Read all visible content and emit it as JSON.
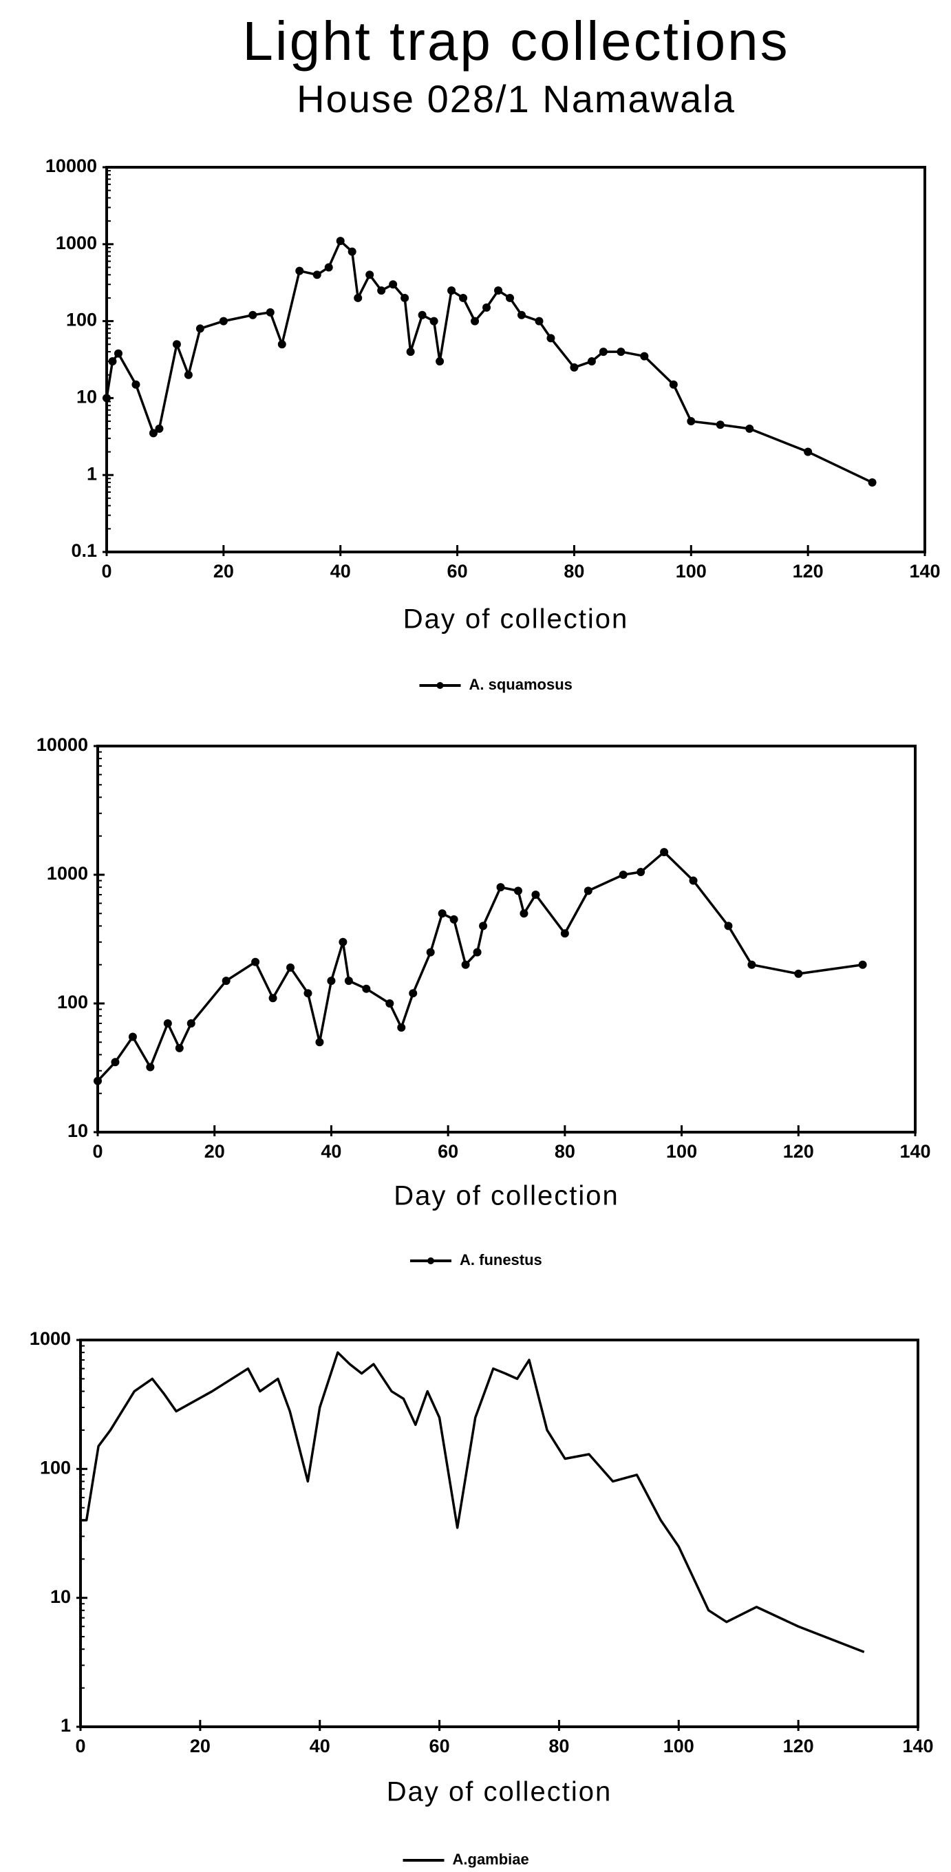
{
  "header": {
    "title": "Light trap collections",
    "subtitle": "House 028/1 Namawala"
  },
  "chart_data": [
    {
      "type": "line",
      "xlabel": "Day of collection",
      "log_scale": true,
      "marker": true,
      "xlim": [
        0,
        140
      ],
      "xticks": [
        0,
        20,
        40,
        60,
        80,
        100,
        120,
        140
      ],
      "ylim": [
        0.1,
        10000
      ],
      "yticks": [
        0.1,
        1,
        10,
        100,
        1000,
        10000
      ],
      "x": [
        0,
        1,
        2,
        5,
        8,
        9,
        12,
        14,
        16,
        20,
        25,
        28,
        30,
        33,
        36,
        38,
        40,
        42,
        43,
        45,
        47,
        49,
        51,
        52,
        54,
        56,
        57,
        59,
        61,
        63,
        65,
        67,
        69,
        71,
        74,
        76,
        80,
        83,
        85,
        88,
        92,
        97,
        100,
        105,
        110,
        120,
        131
      ],
      "series": [
        {
          "name": "A. squamosus",
          "color": "#000000",
          "values": [
            10,
            30,
            38,
            15,
            3.5,
            4,
            50,
            20,
            80,
            100,
            120,
            130,
            50,
            450,
            400,
            500,
            1100,
            800,
            200,
            400,
            250,
            300,
            200,
            40,
            120,
            100,
            30,
            250,
            200,
            100,
            150,
            250,
            200,
            120,
            100,
            60,
            25,
            30,
            40,
            40,
            35,
            15,
            5,
            4.5,
            4,
            2,
            0.8
          ]
        }
      ]
    },
    {
      "type": "line",
      "xlabel": "Day of collection",
      "log_scale": true,
      "marker": true,
      "xlim": [
        0,
        140
      ],
      "xticks": [
        0,
        20,
        40,
        60,
        80,
        100,
        120,
        140
      ],
      "ylim": [
        10,
        10000
      ],
      "yticks": [
        10,
        100,
        1000,
        10000
      ],
      "x": [
        0,
        3,
        6,
        9,
        12,
        14,
        16,
        22,
        27,
        30,
        33,
        36,
        38,
        40,
        42,
        43,
        46,
        50,
        52,
        54,
        57,
        59,
        61,
        63,
        65,
        66,
        69,
        72,
        73,
        75,
        80,
        84,
        90,
        93,
        97,
        102,
        108,
        112,
        120,
        131
      ],
      "series": [
        {
          "name": "A. funestus",
          "color": "#000000",
          "values": [
            25,
            35,
            55,
            32,
            70,
            45,
            70,
            150,
            210,
            110,
            190,
            120,
            50,
            150,
            300,
            150,
            130,
            100,
            65,
            120,
            250,
            500,
            450,
            200,
            250,
            400,
            800,
            750,
            500,
            700,
            350,
            750,
            1000,
            1050,
            1500,
            900,
            400,
            200,
            170,
            200
          ]
        }
      ]
    },
    {
      "type": "line",
      "xlabel": "Day of collection",
      "log_scale": true,
      "marker": false,
      "xlim": [
        0,
        140
      ],
      "xticks": [
        0,
        20,
        40,
        60,
        80,
        100,
        120,
        140
      ],
      "ylim": [
        1,
        1000
      ],
      "yticks": [
        1,
        10,
        100,
        1000
      ],
      "x": [
        0,
        1,
        3,
        5,
        9,
        12,
        14,
        16,
        22,
        28,
        30,
        33,
        35,
        38,
        40,
        43,
        45,
        47,
        49,
        52,
        54,
        56,
        58,
        60,
        63,
        66,
        69,
        71,
        73,
        75,
        78,
        81,
        85,
        89,
        93,
        97,
        100,
        105,
        108,
        113,
        120,
        131
      ],
      "series": [
        {
          "name": "A.gambiae",
          "color": "#000000",
          "values": [
            40,
            40,
            150,
            200,
            400,
            500,
            380,
            280,
            400,
            600,
            400,
            500,
            280,
            80,
            300,
            800,
            650,
            550,
            650,
            400,
            350,
            220,
            400,
            250,
            35,
            250,
            600,
            550,
            500,
            700,
            200,
            120,
            130,
            80,
            90,
            40,
            25,
            8,
            6.5,
            8.5,
            6,
            3.8
          ]
        }
      ]
    }
  ]
}
